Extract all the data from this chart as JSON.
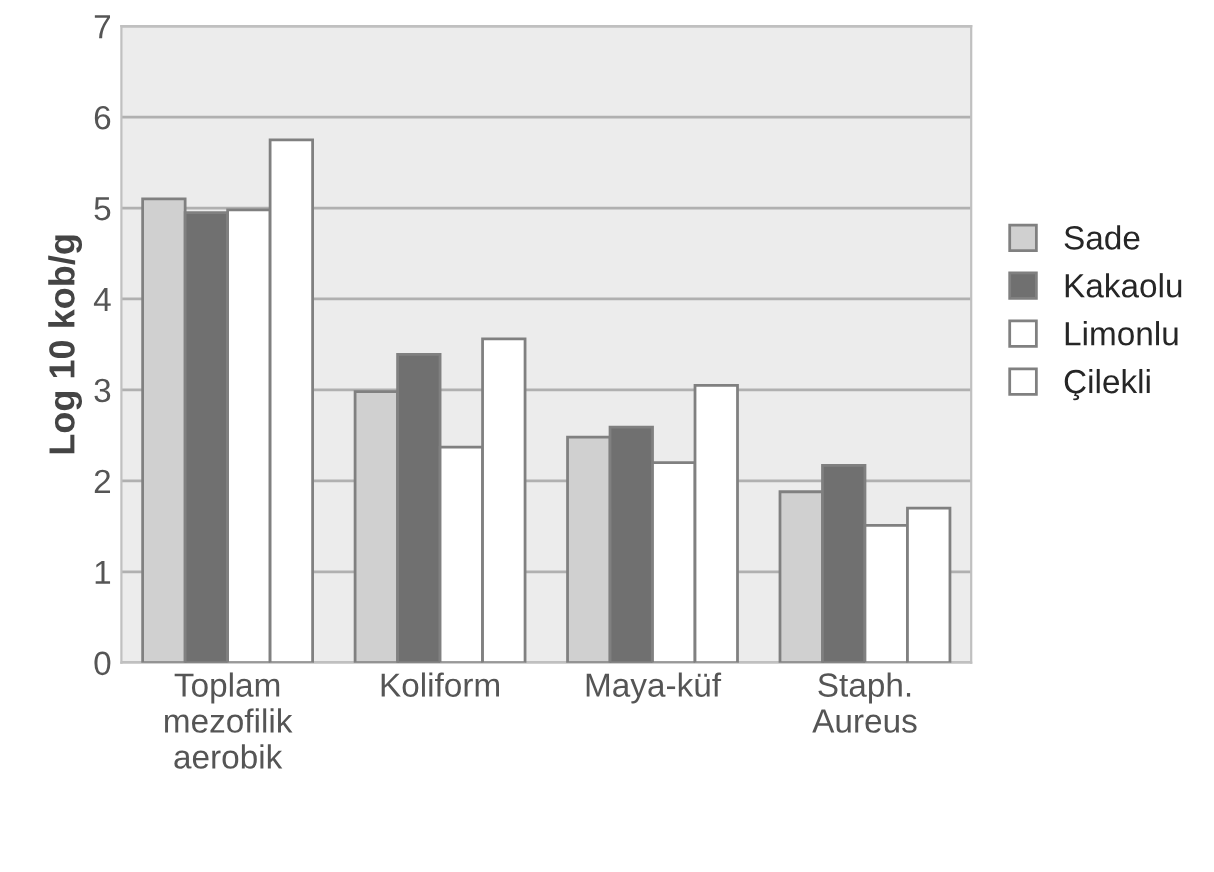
{
  "chart_data": {
    "type": "bar",
    "ylabel": "Log 10 kob/g",
    "categories": [
      "Toplam\nmezofilik\naerobik",
      "Koliform",
      "Maya-küf",
      "Staph.\nAureus"
    ],
    "series": [
      {
        "name": "Sade",
        "color": "#d0d0d0",
        "values": [
          5.1,
          2.98,
          2.48,
          1.88
        ]
      },
      {
        "name": "Kakaolu",
        "color": "#707070",
        "values": [
          4.95,
          3.39,
          2.59,
          2.17
        ]
      },
      {
        "name": "Limonlu",
        "color": "#ffffff",
        "values": [
          4.98,
          2.37,
          2.2,
          1.51
        ]
      },
      {
        "name": "Çilekli",
        "color": "#ffffff",
        "values": [
          5.75,
          3.56,
          3.05,
          1.7
        ]
      }
    ],
    "ylim": [
      0,
      7
    ],
    "yticks": [
      0,
      1,
      2,
      3,
      4,
      5,
      6,
      7
    ],
    "grid": "y",
    "legend": "right"
  }
}
